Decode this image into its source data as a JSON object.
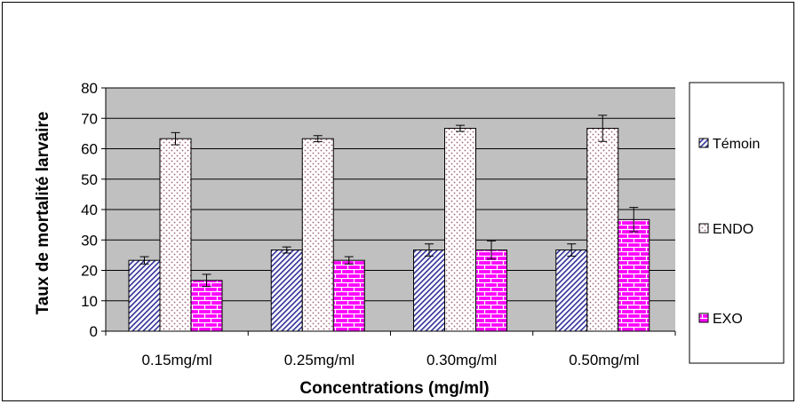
{
  "chart_data": {
    "type": "bar",
    "title": "",
    "xlabel": "Concentrations (mg/ml)",
    "ylabel": "Taux de mortalité larvaire",
    "ylim": [
      0,
      80
    ],
    "yticks": [
      0,
      10,
      20,
      30,
      40,
      50,
      60,
      70,
      80
    ],
    "grid": true,
    "legend_position": "right",
    "categories": [
      "0.15mg/ml",
      "0.25mg/ml",
      "0.30mg/ml",
      "0.50mg/ml"
    ],
    "series": [
      {
        "name": "Témoin",
        "pattern": "diagonal-hatch",
        "color": "#33339a",
        "values": [
          23.3,
          26.7,
          26.7,
          26.7
        ],
        "errors": [
          1.2,
          1.0,
          2.0,
          2.0
        ]
      },
      {
        "name": "ENDO",
        "pattern": "dots",
        "color": "#a0607a",
        "values": [
          63.3,
          63.3,
          66.7,
          66.7
        ],
        "errors": [
          2.0,
          1.0,
          1.0,
          4.3
        ]
      },
      {
        "name": "EXO",
        "pattern": "brick",
        "color": "#ff00ff",
        "values": [
          16.7,
          23.3,
          26.7,
          36.7
        ],
        "errors": [
          2.0,
          1.2,
          3.0,
          4.0
        ]
      }
    ],
    "plot_background": "#c0c0c0"
  }
}
